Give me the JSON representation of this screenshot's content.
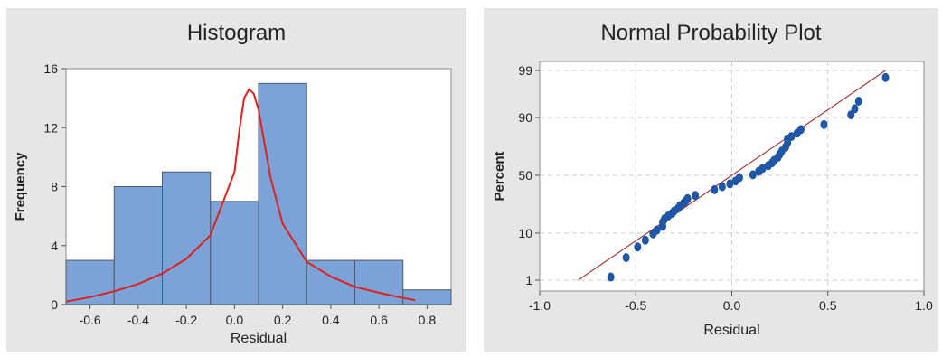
{
  "chart_data": [
    {
      "type": "bar",
      "title": "Histogram",
      "xlabel": "Residual",
      "ylabel": "Frequency",
      "xlim": [
        -0.7,
        0.9
      ],
      "ylim": [
        0,
        16
      ],
      "xticks": [
        -0.6,
        -0.4,
        -0.2,
        0.0,
        0.2,
        0.4,
        0.6,
        0.8
      ],
      "xtick_labels": [
        "-0.6",
        "-0.4",
        "-0.2",
        "0.0",
        "0.2",
        "0.4",
        "0.6",
        "0.8"
      ],
      "yticks": [
        0,
        4,
        8,
        12,
        16
      ],
      "ytick_labels": [
        "0",
        "4",
        "8",
        "12",
        "16"
      ],
      "bins": [
        {
          "start": -0.7,
          "end": -0.5,
          "count": 3
        },
        {
          "start": -0.5,
          "end": -0.3,
          "count": 8
        },
        {
          "start": -0.3,
          "end": -0.1,
          "count": 9
        },
        {
          "start": -0.1,
          "end": 0.1,
          "count": 7
        },
        {
          "start": 0.1,
          "end": 0.3,
          "count": 15
        },
        {
          "start": 0.3,
          "end": 0.5,
          "count": 3
        },
        {
          "start": 0.5,
          "end": 0.7,
          "count": 3
        },
        {
          "start": 0.7,
          "end": 0.9,
          "count": 1
        }
      ],
      "fit_curve": [
        [
          -0.7,
          0.2
        ],
        [
          -0.6,
          0.5
        ],
        [
          -0.5,
          0.9
        ],
        [
          -0.4,
          1.4
        ],
        [
          -0.3,
          2.1
        ],
        [
          -0.2,
          3.1
        ],
        [
          -0.1,
          4.7
        ],
        [
          0.0,
          9.0
        ],
        [
          0.02,
          11.8
        ],
        [
          0.04,
          14.0
        ],
        [
          0.06,
          14.6
        ],
        [
          0.08,
          14.3
        ],
        [
          0.1,
          13.2
        ],
        [
          0.15,
          8.6
        ],
        [
          0.2,
          5.5
        ],
        [
          0.3,
          2.9
        ],
        [
          0.4,
          1.9
        ],
        [
          0.5,
          1.2
        ],
        [
          0.6,
          0.8
        ],
        [
          0.7,
          0.45
        ],
        [
          0.75,
          0.3
        ]
      ],
      "colors": {
        "bar_fill": "#7ba3d8",
        "bar_stroke": "#4f5b6b",
        "curve": "#e0201c",
        "plot_bg": "#ffffff",
        "panel_bg": "#e6e6e6"
      }
    },
    {
      "type": "scatter",
      "title": "Normal Probability Plot",
      "xlabel": "Residual",
      "ylabel": "Percent",
      "xlim": [
        -1.0,
        1.0
      ],
      "y_scale": "normal-probability",
      "xticks": [
        -1.0,
        -0.5,
        0.0,
        0.5,
        1.0
      ],
      "xtick_labels": [
        "-1.0",
        "-0.5",
        "0.0",
        "0.5",
        "1.0"
      ],
      "yticks": [
        1,
        10,
        50,
        90,
        99
      ],
      "ytick_labels": [
        "1",
        "10",
        "50",
        "90",
        "99"
      ],
      "grid": true,
      "points": [
        [
          -0.63,
          1.2
        ],
        [
          -0.55,
          3.4
        ],
        [
          -0.49,
          5.6
        ],
        [
          -0.45,
          7.5
        ],
        [
          -0.41,
          9.7
        ],
        [
          -0.39,
          11.2
        ],
        [
          -0.36,
          12.9
        ],
        [
          -0.36,
          14.9
        ],
        [
          -0.35,
          16.7
        ],
        [
          -0.33,
          18.5
        ],
        [
          -0.31,
          20.0
        ],
        [
          -0.3,
          21.5
        ],
        [
          -0.28,
          23.2
        ],
        [
          -0.27,
          25.0
        ],
        [
          -0.25,
          27.0
        ],
        [
          -0.24,
          28.5
        ],
        [
          -0.23,
          30.3
        ],
        [
          -0.19,
          32.8
        ],
        [
          -0.09,
          37.5
        ],
        [
          -0.05,
          40.0
        ],
        [
          -0.01,
          42.5
        ],
        [
          0.02,
          45.0
        ],
        [
          0.04,
          48.0
        ],
        [
          0.11,
          50.5
        ],
        [
          0.14,
          53.5
        ],
        [
          0.16,
          56.0
        ],
        [
          0.19,
          58.5
        ],
        [
          0.21,
          61.0
        ],
        [
          0.22,
          63.0
        ],
        [
          0.24,
          65.5
        ],
        [
          0.25,
          68.0
        ],
        [
          0.26,
          70.5
        ],
        [
          0.28,
          73.5
        ],
        [
          0.29,
          76.5
        ],
        [
          0.29,
          79.0
        ],
        [
          0.31,
          80.5
        ],
        [
          0.34,
          82.5
        ],
        [
          0.36,
          84.5
        ],
        [
          0.48,
          87.0
        ],
        [
          0.62,
          91.0
        ],
        [
          0.64,
          93.0
        ],
        [
          0.66,
          95.0
        ],
        [
          0.8,
          98.5
        ]
      ],
      "fit_line": [
        [
          -0.8,
          1
        ],
        [
          0.8,
          99
        ]
      ],
      "colors": {
        "points": "#1f56a6",
        "line": "#a33b3b",
        "grid": "#cfcfcf",
        "plot_bg": "#ffffff",
        "panel_bg": "#e6e6e6"
      }
    }
  ]
}
